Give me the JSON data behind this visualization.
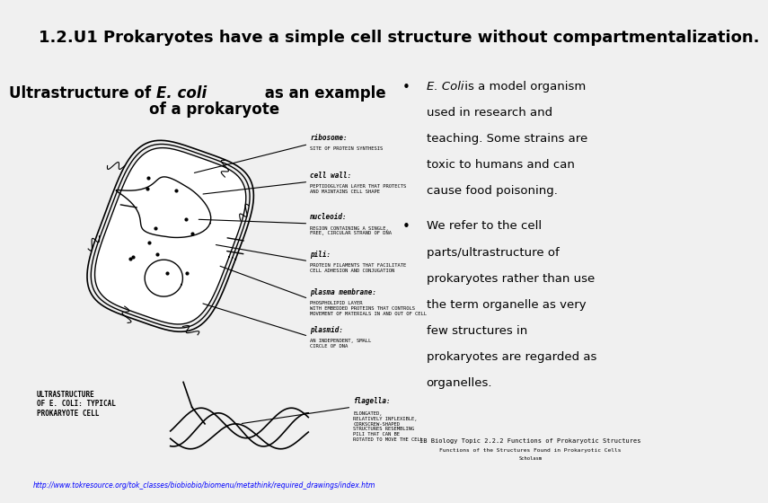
{
  "title": "1.2.U1 Prokaryotes have a simple cell structure without compartmentalization.",
  "title_bg": "#c5d5e8",
  "subtitle": "Ultrastructure of E. coli as an example\nof a prokaryote",
  "subtitle_italic_part": "E. coli",
  "bg_color": "#f0f0f0",
  "content_bg": "#ffffff",
  "bullet1_header": "E. Coli",
  "bullet1_header_italic": true,
  "bullet1_text": " is a model organism\nused in research and\nteaching. Some strains are\ntoxic to humans and can\ncause food poisoning.",
  "bullet2_text": "We refer to the cell\nparts/ultrastructure of\nprokaryotes rather than use\nthe term organelle as very\nfew structures in\nprokaryotes are regarded as\norganelles.",
  "footer_url": "http://www.tokresource.org/tok_classes/biobiobio/biomenu/metathink/required_drawings/index.htm",
  "title_fontsize": 13,
  "subtitle_fontsize": 12,
  "bullet_fontsize": 9.5
}
